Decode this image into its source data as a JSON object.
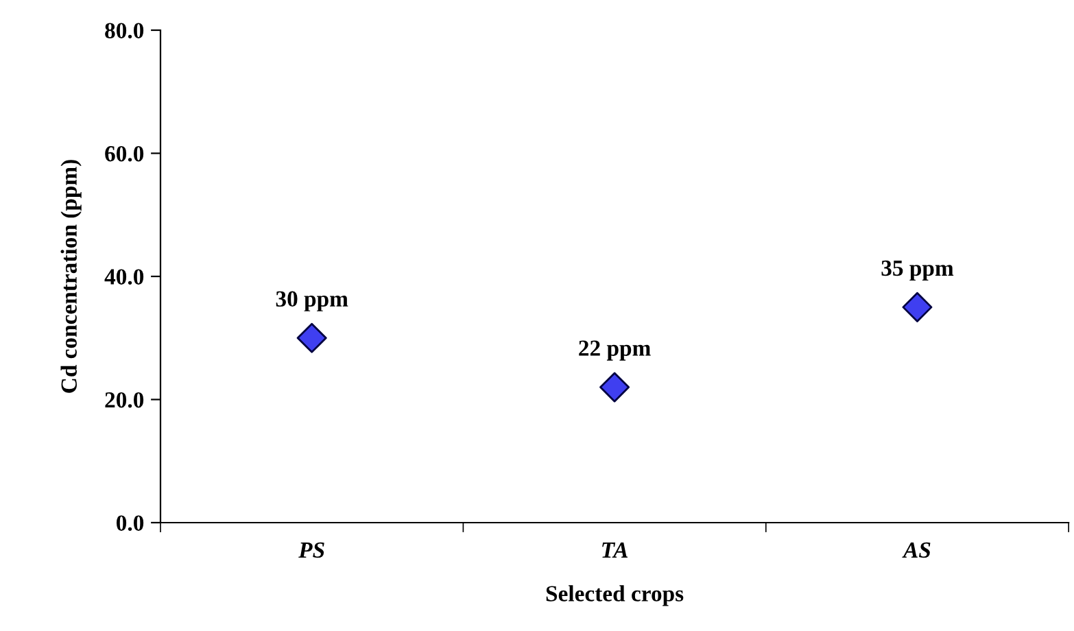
{
  "chart_data": {
    "type": "scatter",
    "xlabel": "Selected crops",
    "ylabel": "Cd concentration (ppm)",
    "categories": [
      "PS",
      "TA",
      "AS"
    ],
    "values": [
      30,
      22,
      35
    ],
    "value_labels": [
      "30 ppm",
      "22 ppm",
      "35 ppm"
    ],
    "color": "#3f3ff0",
    "marker": "diamond",
    "ylim": [
      0,
      80
    ],
    "yticks": [
      {
        "value": 0,
        "label": "0.0"
      },
      {
        "value": 20,
        "label": "20.0"
      },
      {
        "value": 40,
        "label": "40.0"
      },
      {
        "value": 60,
        "label": "60.0"
      },
      {
        "value": 80,
        "label": "80.0"
      }
    ],
    "grid": false
  }
}
